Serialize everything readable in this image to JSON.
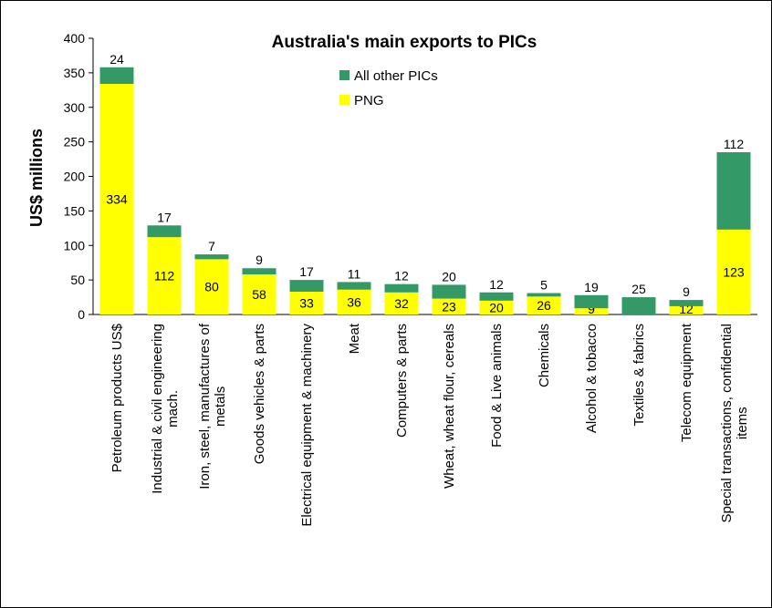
{
  "chart_data": {
    "type": "stacked-bar",
    "title": "Australia's main exports to PICs",
    "ylabel": "US$ millions",
    "categories": [
      "Petroleum products US$",
      "Industrial & civil engineering mach.",
      "Iron, steel, manufactures of metals",
      "Goods vehicles & parts",
      "Electrical equipment & machinery",
      "Meat",
      "Computers & parts",
      "Wheat, wheat flour, cereals",
      "Food & Live animals",
      "Chemicals",
      "Alcohol & tobacco",
      "Textiles & fabrics",
      "Telecom equipment",
      "Special transactions, confidential items"
    ],
    "series": [
      {
        "name": "PNG",
        "color": "#ffff00",
        "values": [
          334,
          112,
          80,
          58,
          33,
          36,
          32,
          23,
          20,
          26,
          9,
          0,
          12,
          123
        ]
      },
      {
        "name": "All other PICs",
        "color": "#339966",
        "values": [
          24,
          17,
          7,
          9,
          17,
          11,
          12,
          20,
          12,
          5,
          19,
          25,
          9,
          112
        ]
      }
    ],
    "ylim": [
      0,
      400
    ],
    "yticks": [
      0,
      50,
      100,
      150,
      200,
      250,
      300,
      350,
      400
    ],
    "grid": false
  }
}
